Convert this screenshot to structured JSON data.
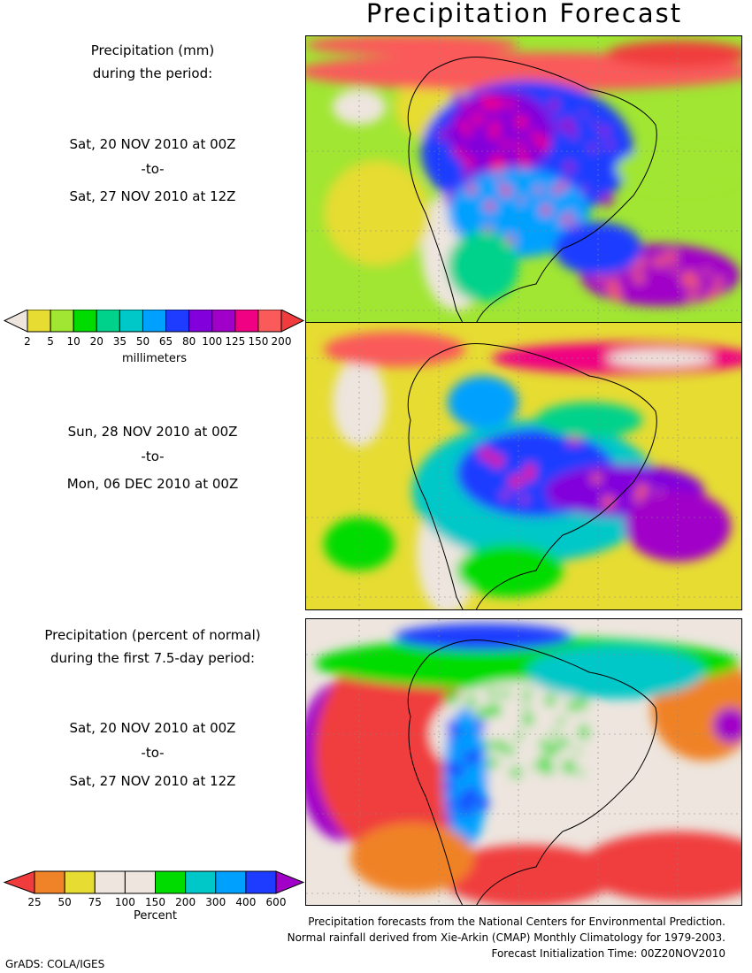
{
  "title": "Precipitation Forecast",
  "panel1": {
    "heading_line1": "Precipitation (mm)",
    "heading_line2": "during the period:",
    "start": "Sat, 20 NOV 2010 at 00Z",
    "sep": "-to-",
    "end": "Sat, 27 NOV 2010 at 12Z"
  },
  "panel2": {
    "start": "Sun, 28 NOV 2010 at 00Z",
    "sep": "-to-",
    "end": "Mon, 06 DEC 2010 at 00Z"
  },
  "panel3": {
    "heading_line1": "Precipitation (percent of normal)",
    "heading_line2": "during the first 7.5-day period:",
    "start": "Sat, 20 NOV 2010 at 00Z",
    "sep": "-to-",
    "end": "Sat, 27 NOV 2010 at 12Z"
  },
  "mm_legend": {
    "unit": "millimeters",
    "labels": [
      "2",
      "5",
      "10",
      "20",
      "35",
      "50",
      "65",
      "80",
      "100",
      "125",
      "150",
      "200"
    ],
    "colors": [
      "#ede5de",
      "#e6dc32",
      "#a0e632",
      "#00dc00",
      "#00d28c",
      "#00c8c8",
      "#00a0ff",
      "#1e3cff",
      "#8200dc",
      "#a000c8",
      "#f00082",
      "#fa5a5a",
      "#f03c3c"
    ]
  },
  "pct_legend": {
    "unit": "Percent",
    "labels": [
      "25",
      "50",
      "75",
      "100",
      "150",
      "200",
      "300",
      "400",
      "600"
    ],
    "colors": [
      "#f03c3c",
      "#f08228",
      "#e6dc32",
      "#ede5de",
      "#ede5de",
      "#00dc00",
      "#00c8c8",
      "#00a0ff",
      "#1e3cff",
      "#a000c8"
    ]
  },
  "credits": [
    "Precipitation forecasts from the National Centers for Environmental Prediction.",
    "Normal rainfall derived from Xie-Arkin (CMAP) Monthly Climatology for 1979-2003.",
    "Forecast Initialization Time: 00Z20NOV2010"
  ],
  "footer": "GrADS: COLA/IGES"
}
